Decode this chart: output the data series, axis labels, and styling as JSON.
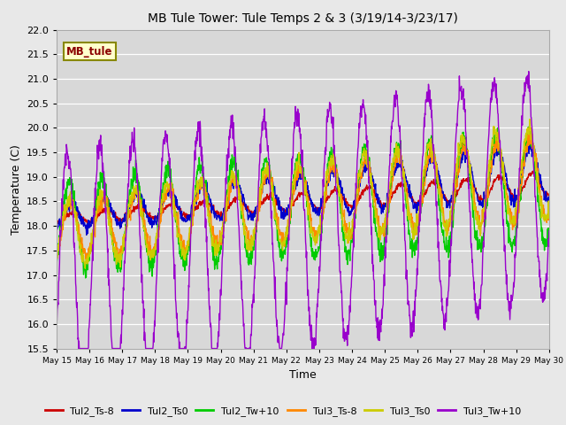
{
  "title": "MB Tule Tower: Tule Temps 2 & 3 (3/19/14-3/23/17)",
  "xlabel": "Time",
  "ylabel": "Temperature (C)",
  "ylim": [
    15.5,
    22.0
  ],
  "xlim_days": [
    15,
    30
  ],
  "xtick_labels": [
    "May 15",
    "May 16",
    "May 17",
    "May 18",
    "May 19",
    "May 20",
    "May 21",
    "May 22",
    "May 23",
    "May 24",
    "May 25",
    "May 26",
    "May 27",
    "May 28",
    "May 29",
    "May 30"
  ],
  "ytick_values": [
    15.5,
    16.0,
    16.5,
    17.0,
    17.5,
    18.0,
    18.5,
    19.0,
    19.5,
    20.0,
    20.5,
    21.0,
    21.5,
    22.0
  ],
  "legend_label": "MB_tule",
  "series_colors": {
    "Tul2_Ts-8": "#cc0000",
    "Tul2_Ts0": "#0000cc",
    "Tul2_Tw+10": "#00cc00",
    "Tul3_Ts-8": "#ff8800",
    "Tul3_Ts0": "#cccc00",
    "Tul3_Tw+10": "#9900cc"
  },
  "bg_color": "#e8e8e8",
  "plot_bg_color": "#d8d8d8",
  "legend_box_color": "#ffffcc",
  "legend_box_edge": "#888800"
}
